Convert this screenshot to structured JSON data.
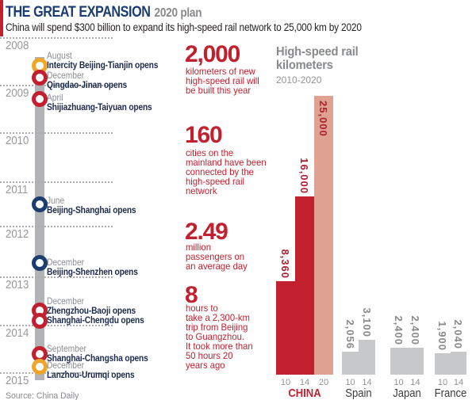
{
  "header": {
    "title": "THE GREAT EXPANSION",
    "plan": "2020 plan",
    "description": "China will spend $300 billion to expand its high-speed rail network to 25,000 km by 2020"
  },
  "timeline": {
    "years": [
      "2008",
      "2009",
      "2010",
      "2011",
      "2012",
      "2013",
      "2014",
      "2015"
    ],
    "events": [
      {
        "month": "August",
        "lines": [
          "Intercity Beijing-Tianjin opens"
        ],
        "marker_color": "yellow"
      },
      {
        "month": "December",
        "lines": [
          "Qingdao-Jinan opens"
        ],
        "marker_color": "red"
      },
      {
        "month": "April",
        "lines": [
          "Shijiazhuang-Taiyuan opens"
        ],
        "marker_color": "red"
      },
      {
        "month": "June",
        "lines": [
          "Beijing-Shanghai opens"
        ],
        "marker_color": "navy"
      },
      {
        "month": "December",
        "lines": [
          "Beijing-Shenzhen opens"
        ],
        "marker_color": "navy"
      },
      {
        "month": "December",
        "lines": [
          "Zhengzhou-Baoji opens",
          "Shanghai-Chengdu opens"
        ],
        "marker_color": "red"
      },
      {
        "month": "September",
        "lines": [
          "Shanghai-Changsha opens"
        ],
        "marker_color": "red"
      },
      {
        "month": "December",
        "lines": [
          "Lanzhou-Urumqi opens"
        ],
        "marker_color": "yellow"
      }
    ]
  },
  "stats": [
    {
      "value": "2,000",
      "lines": [
        "kilometers of new",
        "high-speed rail will",
        "be built this year"
      ]
    },
    {
      "value": "160",
      "lines": [
        "cities on the",
        "mainland have been",
        "connected by the",
        "high-speed rail",
        "network"
      ]
    },
    {
      "value": "2.49",
      "lines": [
        "million",
        "passengers on",
        "an average day"
      ]
    },
    {
      "value": "8",
      "lines": [
        "hours to",
        "take a 2,300-km",
        "trip from Beijing",
        "to Guangzhou.",
        "It took more than",
        "50 hours 20",
        "years ago"
      ]
    }
  ],
  "chart_data": {
    "type": "bar",
    "title": "High-speed rail kilometers",
    "title_line1": "High-speed rail",
    "title_line2": "kilometers",
    "subtitle": "2010-2020",
    "ylabel": "kilometers",
    "ylim": [
      0,
      25000
    ],
    "grid": false,
    "legend": "none",
    "groups": [
      {
        "country": "CHINA",
        "x": [
          "10",
          "14",
          "20"
        ],
        "values": [
          8360,
          16000,
          25000
        ],
        "labels": [
          "8,360",
          "16,000",
          "25,000"
        ]
      },
      {
        "country": "Spain",
        "x": [
          "10",
          "14"
        ],
        "values": [
          2056,
          3100
        ],
        "labels": [
          "2,056",
          "3,100"
        ]
      },
      {
        "country": "Japan",
        "x": [
          "10",
          "14"
        ],
        "values": [
          2400,
          2400
        ],
        "labels": [
          "2,400",
          "2,400"
        ]
      },
      {
        "country": "France",
        "x": [
          "10",
          "14"
        ],
        "values": [
          1900,
          2040
        ],
        "labels": [
          "1,900",
          "2,040"
        ]
      }
    ]
  },
  "source": "Source: China Daily",
  "colors": {
    "red": "#c2202f",
    "pink": "#dfa192",
    "navy_title": "#1a3b73",
    "marker_navy": "#1c3e6e",
    "marker_yellow": "#f0a52c",
    "gray_bar": "#c7c8ca",
    "timeline_gray": "#b1b3b6",
    "gray_text": "#87898c",
    "china_value_label": "#ab2130",
    "other_value_label": "#87898c"
  }
}
